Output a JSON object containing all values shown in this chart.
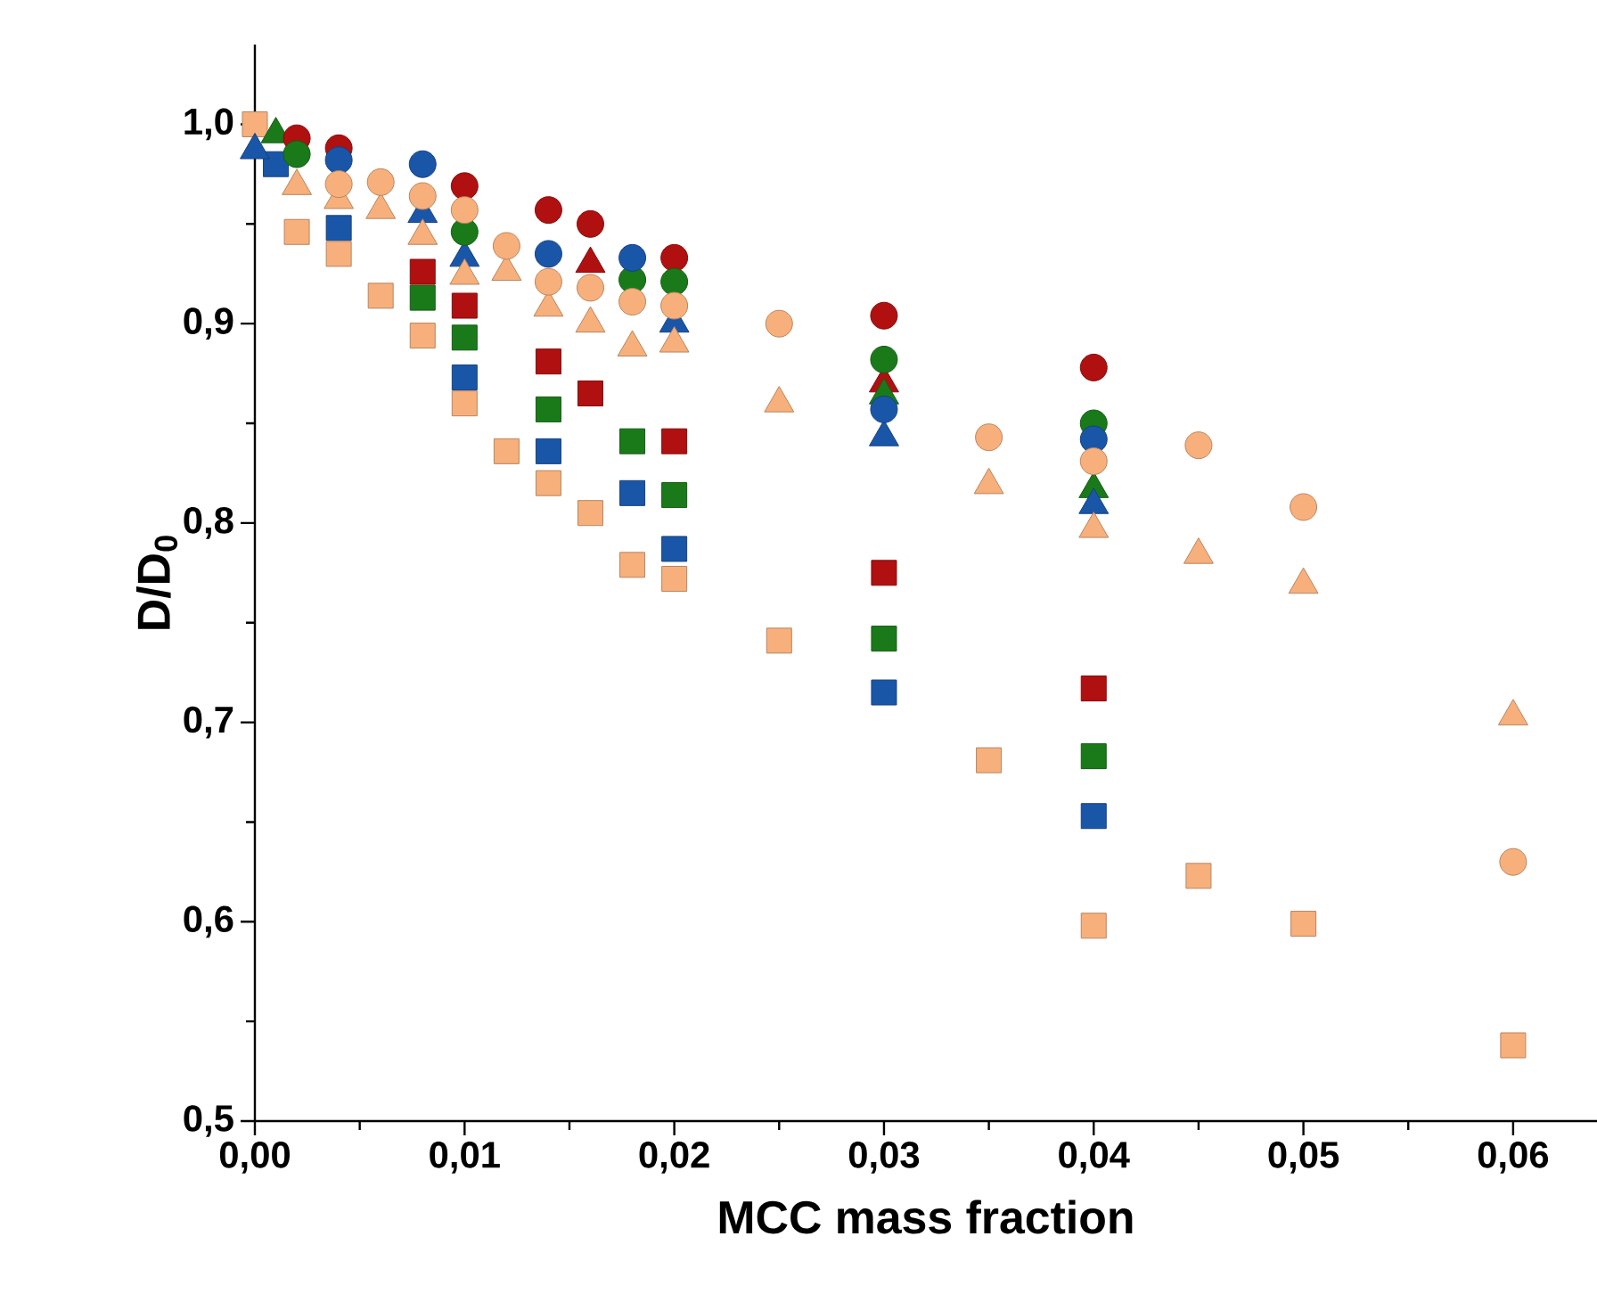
{
  "chart_data": {
    "type": "scatter",
    "xlabel": "MCC mass fraction",
    "ylabel": "D/D$_{0}$",
    "xlim": [
      0,
      0.064
    ],
    "ylim": [
      0.5,
      1.04
    ],
    "xticks": [
      {
        "value": 0,
        "label": "0,00"
      },
      {
        "value": 0.01,
        "label": "0,01"
      },
      {
        "value": 0.02,
        "label": "0,02"
      },
      {
        "value": 0.03,
        "label": "0,03"
      },
      {
        "value": 0.04,
        "label": "0,04"
      },
      {
        "value": 0.05,
        "label": "0,05"
      },
      {
        "value": 0.06,
        "label": "0,06"
      }
    ],
    "yticks": [
      {
        "value": 0.5,
        "label": "0,5"
      },
      {
        "value": 0.6,
        "label": "0,6"
      },
      {
        "value": 0.7,
        "label": "0,7"
      },
      {
        "value": 0.8,
        "label": "0,8"
      },
      {
        "value": 0.9,
        "label": "0,9"
      },
      {
        "value": 1.0,
        "label": "1,0"
      }
    ],
    "series": [
      {
        "color": "#1a56a8",
        "marker": "square",
        "x": [
          0.001,
          0.004,
          0.01,
          0.014,
          0.018,
          0.02,
          0.03,
          0.04
        ],
        "values": [
          0.98,
          0.948,
          0.873,
          0.836,
          0.815,
          0.787,
          0.715,
          0.653
        ]
      },
      {
        "color": "#1a7a1a",
        "marker": "square",
        "x": [
          0.008,
          0.01,
          0.014,
          0.018,
          0.02,
          0.03,
          0.04
        ],
        "values": [
          0.913,
          0.893,
          0.857,
          0.841,
          0.814,
          0.742,
          0.683
        ]
      },
      {
        "color": "#b01010",
        "marker": "square",
        "x": [
          0.008,
          0.01,
          0.014,
          0.016,
          0.02,
          0.03,
          0.04
        ],
        "values": [
          0.926,
          0.909,
          0.881,
          0.865,
          0.841,
          0.775,
          0.717
        ]
      },
      {
        "color": "#f7b07c",
        "marker": "square",
        "x": [
          0,
          0.002,
          0.004,
          0.006,
          0.008,
          0.01,
          0.012,
          0.014,
          0.016,
          0.018,
          0.02,
          0.025,
          0.035,
          0.04,
          0.045,
          0.05,
          0.06
        ],
        "values": [
          1.0,
          0.946,
          0.935,
          0.914,
          0.894,
          0.86,
          0.836,
          0.82,
          0.805,
          0.779,
          0.772,
          0.741,
          0.681,
          0.598,
          0.623,
          0.599,
          0.538
        ]
      },
      {
        "color": "#b01010",
        "marker": "triangle",
        "x": [
          0.016,
          0.03
        ],
        "values": [
          0.93,
          0.87
        ]
      },
      {
        "color": "#1a7a1a",
        "marker": "triangle",
        "x": [
          0.001,
          0.03,
          0.04
        ],
        "values": [
          0.995,
          0.864,
          0.817
        ]
      },
      {
        "color": "#1a56a8",
        "marker": "triangle",
        "x": [
          0,
          0.008,
          0.01,
          0.02,
          0.03,
          0.04
        ],
        "values": [
          0.987,
          0.955,
          0.933,
          0.9,
          0.843,
          0.809
        ]
      },
      {
        "color": "#f7b07c",
        "marker": "triangle",
        "x": [
          0.002,
          0.004,
          0.006,
          0.008,
          0.01,
          0.012,
          0.014,
          0.016,
          0.018,
          0.02,
          0.025,
          0.035,
          0.04,
          0.045,
          0.05,
          0.06
        ],
        "values": [
          0.969,
          0.962,
          0.957,
          0.944,
          0.924,
          0.926,
          0.908,
          0.9,
          0.888,
          0.89,
          0.86,
          0.819,
          0.797,
          0.784,
          0.769,
          0.703
        ]
      },
      {
        "color": "#b01010",
        "marker": "circle",
        "x": [
          0.002,
          0.004,
          0.01,
          0.014,
          0.016,
          0.02,
          0.03,
          0.04
        ],
        "values": [
          0.993,
          0.988,
          0.969,
          0.957,
          0.95,
          0.933,
          0.904,
          0.878
        ]
      },
      {
        "color": "#1a7a1a",
        "marker": "circle",
        "x": [
          0.002,
          0.01,
          0.018,
          0.02,
          0.03,
          0.04
        ],
        "values": [
          0.985,
          0.946,
          0.922,
          0.921,
          0.882,
          0.85
        ]
      },
      {
        "color": "#1a56a8",
        "marker": "circle",
        "x": [
          0.004,
          0.008,
          0.014,
          0.018,
          0.03,
          0.04
        ],
        "values": [
          0.982,
          0.98,
          0.935,
          0.933,
          0.857,
          0.842
        ]
      },
      {
        "color": "#f7b07c",
        "marker": "circle",
        "x": [
          0.004,
          0.006,
          0.008,
          0.01,
          0.012,
          0.014,
          0.016,
          0.018,
          0.02,
          0.025,
          0.035,
          0.04,
          0.045,
          0.05,
          0.06
        ],
        "values": [
          0.97,
          0.971,
          0.964,
          0.957,
          0.939,
          0.921,
          0.918,
          0.911,
          0.909,
          0.9,
          0.843,
          0.831,
          0.839,
          0.808,
          0.63
        ]
      }
    ]
  }
}
